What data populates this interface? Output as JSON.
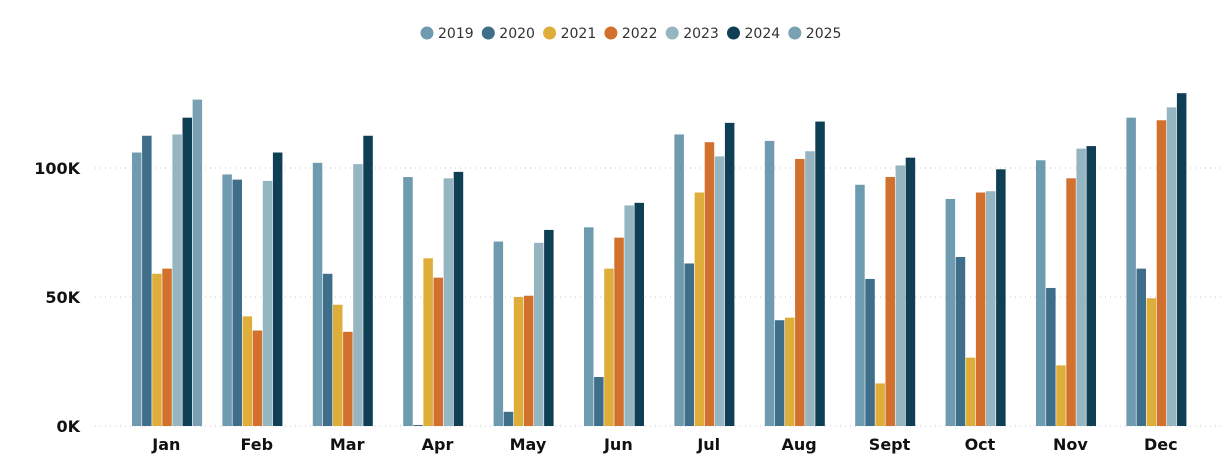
{
  "chart_data": {
    "type": "bar",
    "title": "",
    "xlabel": "",
    "ylabel": "",
    "ylim": [
      0,
      130000
    ],
    "yticks": [
      {
        "value": 0,
        "label": "0K"
      },
      {
        "value": 50000,
        "label": "50K"
      },
      {
        "value": 100000,
        "label": "100K"
      }
    ],
    "grid": "horizontal dotted",
    "legend_position": "top-center",
    "categories": [
      "Jan",
      "Feb",
      "Mar",
      "Apr",
      "May",
      "Jun",
      "Jul",
      "Aug",
      "Sept",
      "Oct",
      "Nov",
      "Dec"
    ],
    "series": [
      {
        "name": "2019",
        "color": "#6f9bb0",
        "values": [
          106000,
          97500,
          102000,
          96500,
          71500,
          77000,
          113000,
          110500,
          93500,
          88000,
          103000,
          119500
        ]
      },
      {
        "name": "2020",
        "color": "#3f6e8a",
        "values": [
          112500,
          95500,
          59000,
          400,
          5500,
          19000,
          63000,
          41000,
          57000,
          65500,
          53500,
          61000
        ]
      },
      {
        "name": "2021",
        "color": "#dfad3a",
        "values": [
          59000,
          42500,
          47000,
          65000,
          50000,
          61000,
          90500,
          42000,
          16500,
          26500,
          23500,
          49500
        ]
      },
      {
        "name": "2022",
        "color": "#d2702e",
        "values": [
          61000,
          37000,
          36500,
          57500,
          50500,
          73000,
          110000,
          103500,
          96500,
          90500,
          96000,
          118500
        ]
      },
      {
        "name": "2023",
        "color": "#95b5c1",
        "values": [
          113000,
          95000,
          101500,
          96000,
          71000,
          85500,
          104500,
          106500,
          101000,
          91000,
          107500,
          123500
        ]
      },
      {
        "name": "2024",
        "color": "#0f3f54",
        "values": [
          119500,
          106000,
          112500,
          98500,
          76000,
          86500,
          117500,
          118000,
          104000,
          99500,
          108500,
          129000
        ]
      },
      {
        "name": "2025",
        "color": "#7aa1b3",
        "values": [
          126500,
          null,
          null,
          null,
          null,
          null,
          null,
          null,
          null,
          null,
          null,
          null
        ]
      }
    ]
  }
}
